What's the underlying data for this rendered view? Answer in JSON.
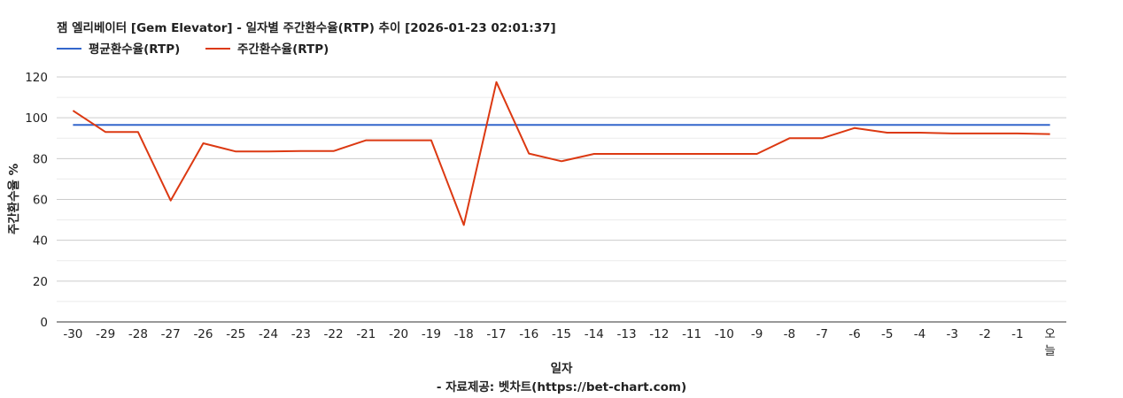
{
  "chart_data": {
    "type": "line",
    "title": "잼 엘리베이터 [Gem Elevator] - 일자별 주간환수율(RTP) 추이 [2026-01-23 02:01:37]",
    "xlabel": "일자",
    "ylabel": "주간환수율 %",
    "footer": "- 자료제공: 벳차트(https://bet-chart.com)",
    "categories": [
      "-30",
      "-29",
      "-28",
      "-27",
      "-26",
      "-25",
      "-24",
      "-23",
      "-22",
      "-21",
      "-20",
      "-19",
      "-18",
      "-17",
      "-16",
      "-15",
      "-14",
      "-13",
      "-12",
      "-11",
      "-10",
      "-9",
      "-8",
      "-7",
      "-6",
      "-5",
      "-4",
      "-3",
      "-2",
      "-1",
      "오늘"
    ],
    "ylim": [
      0,
      120
    ],
    "yticks": [
      0,
      20,
      40,
      60,
      80,
      100,
      120
    ],
    "grid": true,
    "legend_position": "top-left",
    "series": [
      {
        "name": "평균환수율(RTP)",
        "color": "#3366cc",
        "values": [
          96.5,
          96.5,
          96.5,
          96.5,
          96.5,
          96.5,
          96.5,
          96.5,
          96.5,
          96.5,
          96.5,
          96.5,
          96.5,
          96.5,
          96.5,
          96.5,
          96.5,
          96.5,
          96.5,
          96.5,
          96.5,
          96.5,
          96.5,
          96.5,
          96.5,
          96.5,
          96.5,
          96.5,
          96.5,
          96.5,
          96.5
        ]
      },
      {
        "name": "주간환수율(RTP)",
        "color": "#dc3912",
        "values": [
          103.5,
          93,
          93,
          59.5,
          87.5,
          83.5,
          83.5,
          83.7,
          83.7,
          89,
          89,
          89,
          47.5,
          117.5,
          82.5,
          78.7,
          82.3,
          82.3,
          82.3,
          82.3,
          82.3,
          82.3,
          90,
          90,
          95,
          92.7,
          92.7,
          92.3,
          92.3,
          92.3,
          92
        ]
      }
    ]
  }
}
